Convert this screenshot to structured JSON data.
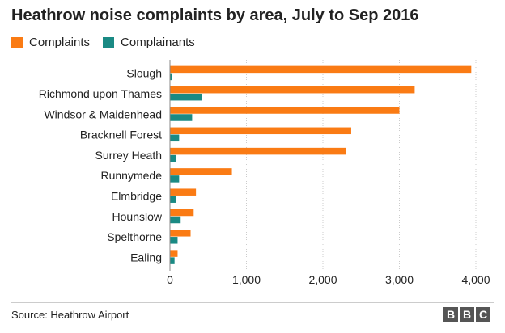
{
  "title": "Heathrow noise complaints by area, July to Sep 2016",
  "source": "Source: Heathrow Airport",
  "logo": [
    "B",
    "B",
    "C"
  ],
  "colors": {
    "complaints": "#fa7b14",
    "complainants": "#1a8a84",
    "grid": "#cccccc",
    "text": "#222222"
  },
  "chart_data": {
    "type": "bar",
    "orientation": "horizontal",
    "title": "Heathrow noise complaints by area, July to Sep 2016",
    "categories": [
      "Slough",
      "Richmond upon Thames",
      "Windsor & Maidenhead",
      "Bracknell Forest",
      "Surrey Heath",
      "Runnymede",
      "Elmbridge",
      "Hounslow",
      "Spelthorne",
      "Ealing"
    ],
    "series": [
      {
        "name": "Complaints",
        "color": "#fa7b14",
        "values": [
          3940,
          3200,
          3000,
          2370,
          2300,
          810,
          340,
          310,
          270,
          100
        ]
      },
      {
        "name": "Complainants",
        "color": "#1a8a84",
        "values": [
          30,
          420,
          290,
          120,
          80,
          120,
          80,
          140,
          100,
          60
        ]
      }
    ],
    "xlim": [
      0,
      4000
    ],
    "xticks": [
      0,
      1000,
      2000,
      3000,
      4000
    ],
    "xtick_labels": [
      "0",
      "1,000",
      "2,000",
      "3,000",
      "4,000"
    ],
    "grid": "vertical",
    "legend": "top-left"
  }
}
